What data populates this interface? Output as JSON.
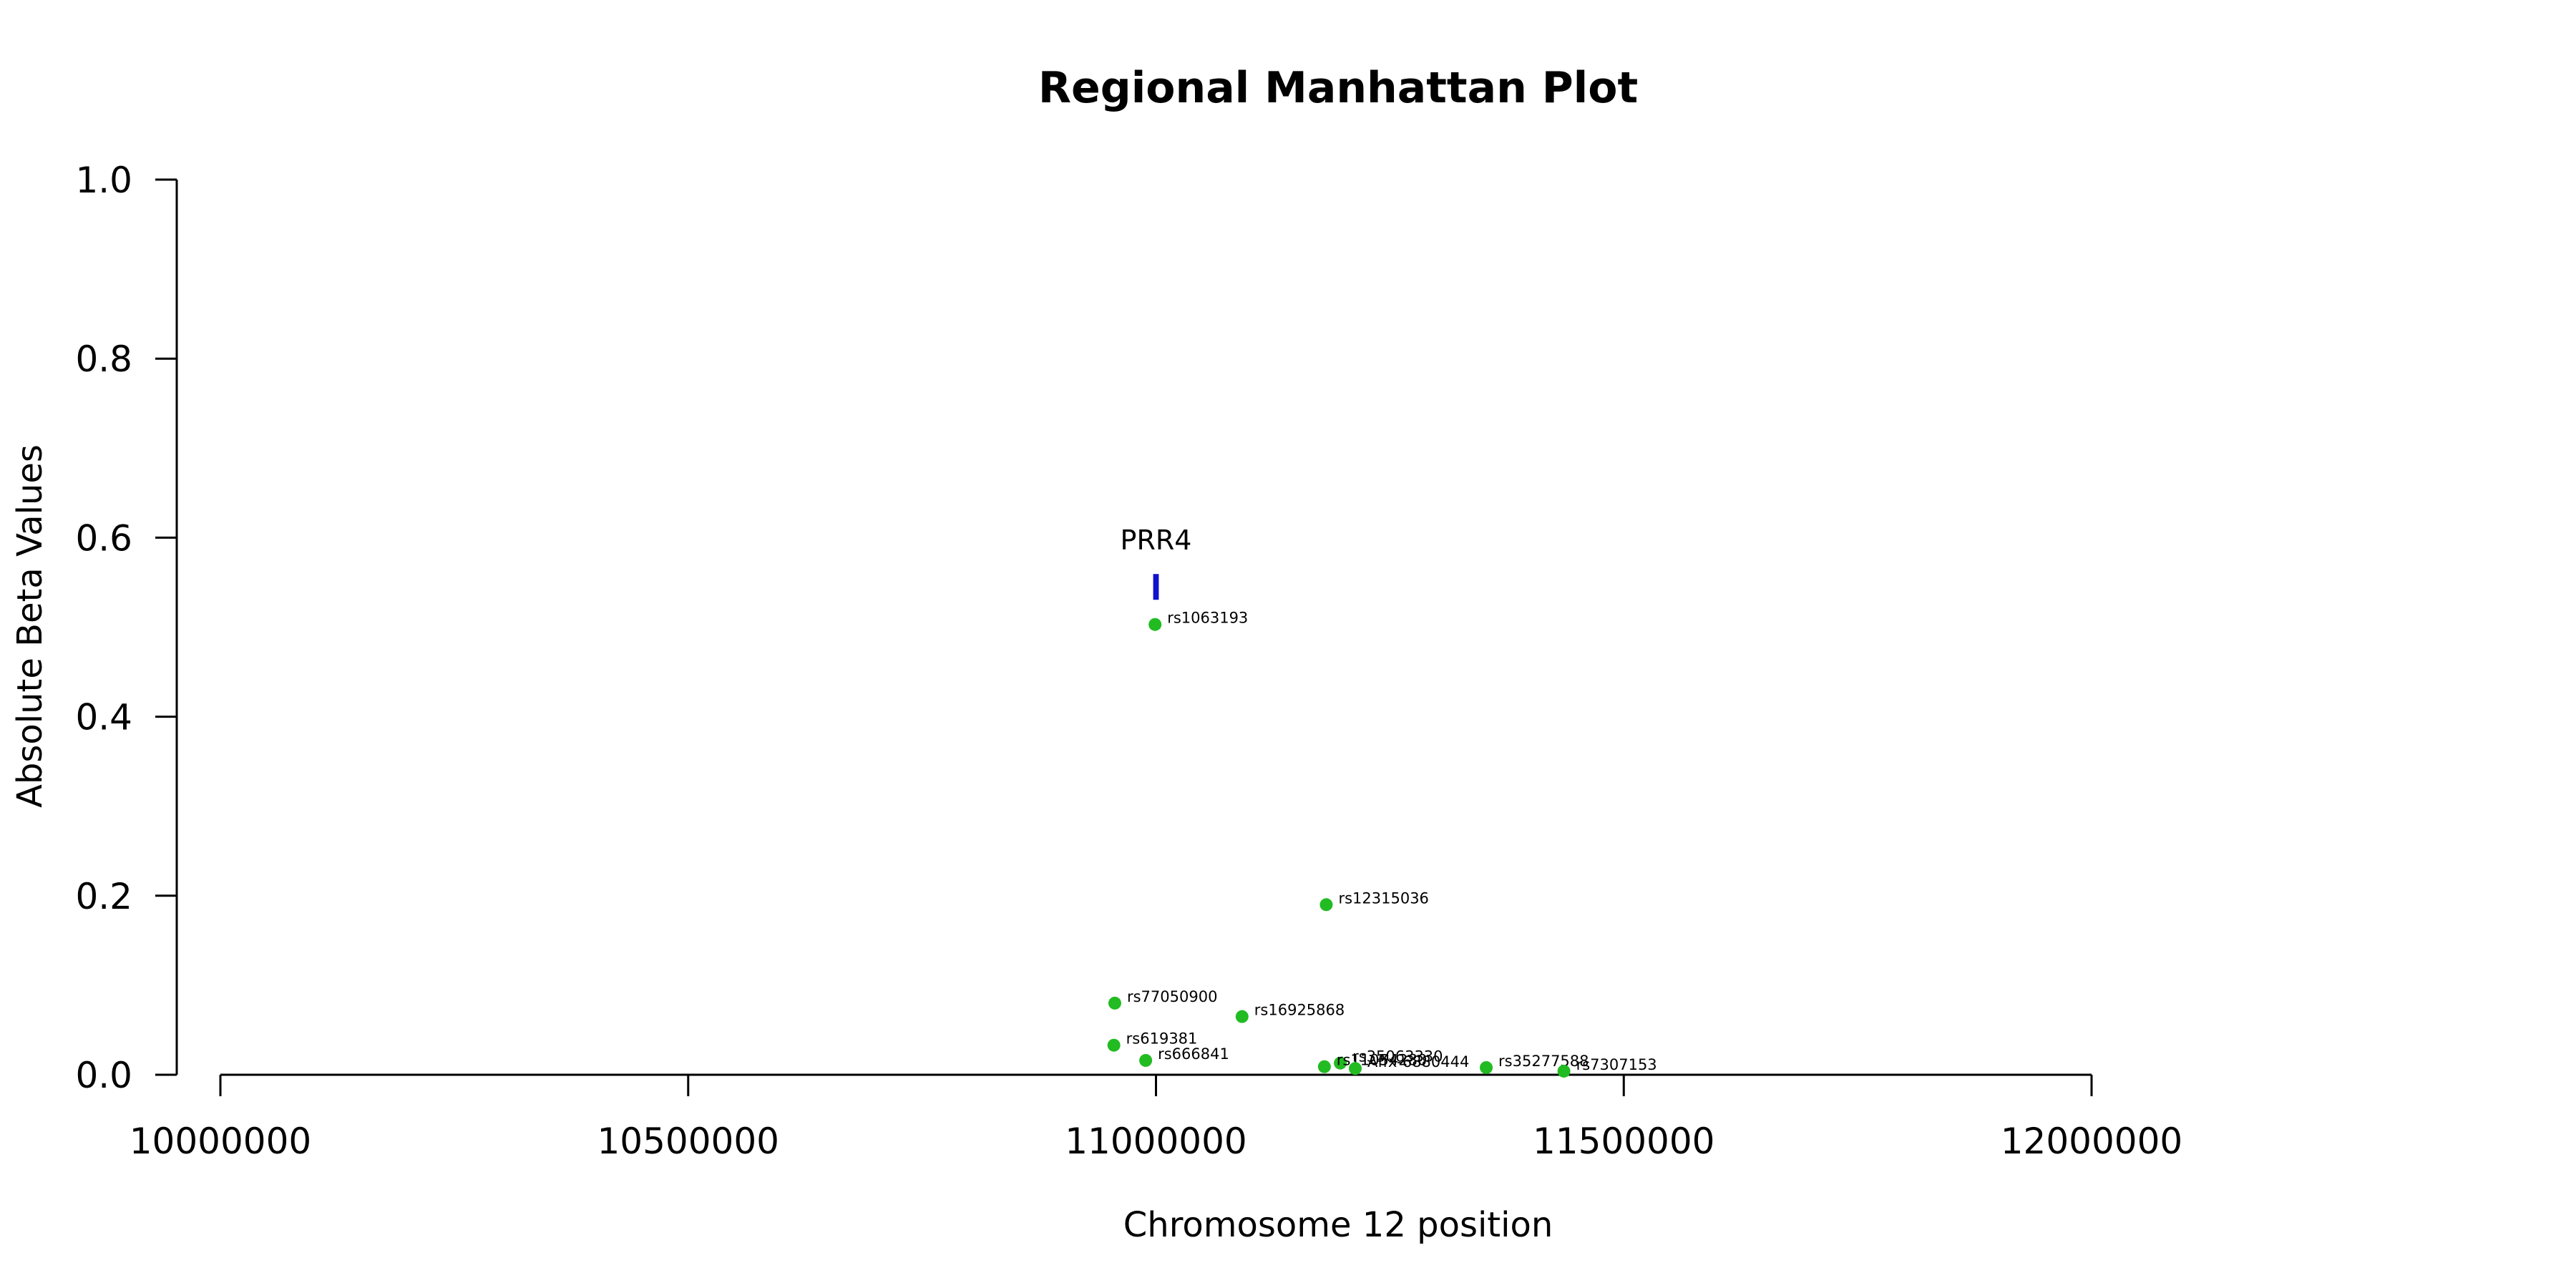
{
  "chart_data": {
    "type": "scatter",
    "title": "Regional Manhattan Plot",
    "xlabel": "Chromosome 12 position",
    "ylabel": "Absolute Beta Values",
    "xlim": [
      10000000,
      12000000
    ],
    "ylim": [
      0,
      1
    ],
    "x_ticks": [
      "10000000",
      "10500000",
      "11000000",
      "11500000",
      "12000000"
    ],
    "y_ticks": [
      "0.0",
      "0.2",
      "0.4",
      "0.6",
      "0.8",
      "1.0"
    ],
    "grid": false,
    "point_color": "#22bb22",
    "gene_color": "#1111cc",
    "genes": [
      {
        "label": "PRR4",
        "start": 10997000,
        "end": 11003000,
        "y": 0.545
      }
    ],
    "points": [
      {
        "label": "rs1063193",
        "x": 10999000,
        "y": 0.503
      },
      {
        "label": "rs12315036",
        "x": 11182000,
        "y": 0.19
      },
      {
        "label": "rs77050900",
        "x": 10956000,
        "y": 0.08
      },
      {
        "label": "rs16925868",
        "x": 11092000,
        "y": 0.065
      },
      {
        "label": "rs619381",
        "x": 10955000,
        "y": 0.033
      },
      {
        "label": "rs666841",
        "x": 10989000,
        "y": 0.016
      },
      {
        "label": "rs35063330",
        "x": 11197000,
        "y": 0.013
      },
      {
        "label": "rs11054280",
        "x": 11180000,
        "y": 0.009
      },
      {
        "label": "Affx-6880444",
        "x": 11213000,
        "y": 0.007
      },
      {
        "label": "rs35277588",
        "x": 11353000,
        "y": 0.008
      },
      {
        "label": "rs7307153",
        "x": 11436000,
        "y": 0.004
      }
    ]
  }
}
